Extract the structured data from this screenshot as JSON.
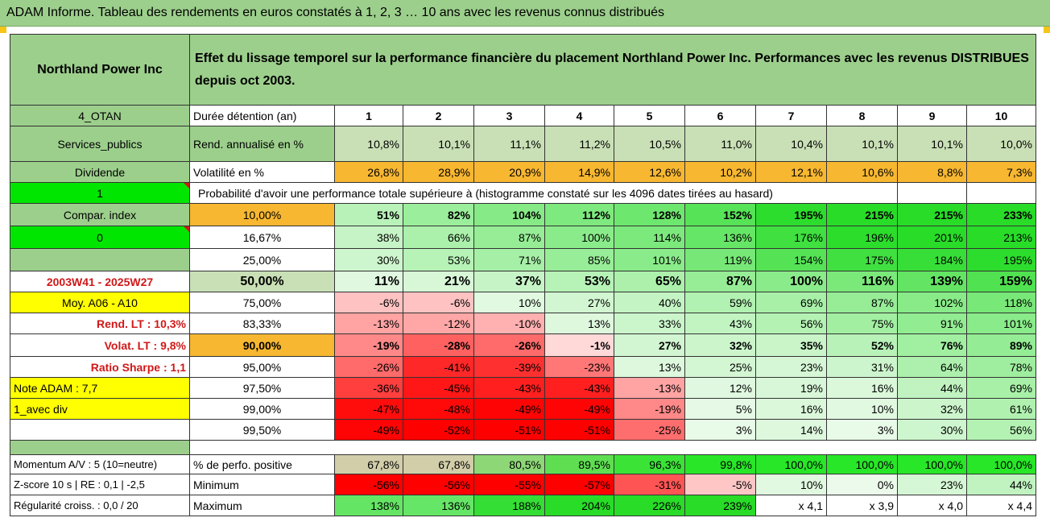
{
  "title": "ADAM Informe. Tableau des rendements en euros constatés à 1, 2, 3 … 10 ans avec les revenus connus distribués",
  "company": "Northland Power Inc",
  "description": "Effet du lissage temporel sur la performance financière du placement Northland Power Inc. Performances avec les revenus DISTRIBUES depuis oct 2003.",
  "side": {
    "code": "4_OTAN",
    "sector": "Services_publics",
    "type": "Dividende",
    "flag1": "1",
    "compar": "Compar. index",
    "flag0": "0",
    "period": "2003W41 - 2025W27",
    "moy": "Moy. A06 - A10",
    "rend_lt": "Rend. LT :   10,3%",
    "volat_lt": "Volat. LT :   9,8%",
    "sharpe": "Ratio Sharpe :   1,1",
    "note": "Note ADAM : 7,7",
    "avec_div": "1_avec div",
    "momentum": "Momentum A/V : 5 (10=neutre)",
    "zscore": "Z-score 10 s | RE : 0,1 | -2,5",
    "regularite": "Régularité croiss. : 0,0 / 20"
  },
  "labels": {
    "duree": "Durée détention (an)",
    "rend": "Rend. annualisé en %",
    "vol": "Volatilité en %",
    "proba": "Probabilité d'avoir une performance totale supérieure à (histogramme constaté sur les 4096 dates tirées au hasard)",
    "pct_pos": "% de perfo. positive",
    "minimum": "Minimum",
    "maximum": "Maximum"
  },
  "years": [
    "1",
    "2",
    "3",
    "4",
    "5",
    "6",
    "7",
    "8",
    "9",
    "10"
  ],
  "rend": [
    "10,8%",
    "10,1%",
    "11,1%",
    "11,2%",
    "10,5%",
    "11,0%",
    "10,4%",
    "10,1%",
    "10,1%",
    "10,0%"
  ],
  "vol": [
    "26,8%",
    "28,9%",
    "20,9%",
    "14,9%",
    "12,6%",
    "10,2%",
    "12,1%",
    "10,6%",
    "8,8%",
    "7,3%"
  ],
  "prob_rows": [
    {
      "p": "10,00%",
      "v": [
        "51%",
        "82%",
        "104%",
        "112%",
        "128%",
        "152%",
        "195%",
        "215%",
        "215%",
        "233%"
      ]
    },
    {
      "p": "16,67%",
      "v": [
        "38%",
        "66%",
        "87%",
        "100%",
        "114%",
        "136%",
        "176%",
        "196%",
        "201%",
        "213%"
      ]
    },
    {
      "p": "25,00%",
      "v": [
        "30%",
        "53%",
        "71%",
        "85%",
        "101%",
        "119%",
        "154%",
        "175%",
        "184%",
        "195%"
      ]
    },
    {
      "p": "50,00%",
      "v": [
        "11%",
        "21%",
        "37%",
        "53%",
        "65%",
        "87%",
        "100%",
        "116%",
        "139%",
        "159%"
      ]
    },
    {
      "p": "75,00%",
      "v": [
        "-6%",
        "-6%",
        "10%",
        "27%",
        "40%",
        "59%",
        "69%",
        "87%",
        "102%",
        "118%"
      ]
    },
    {
      "p": "83,33%",
      "v": [
        "-13%",
        "-12%",
        "-10%",
        "13%",
        "33%",
        "43%",
        "56%",
        "75%",
        "91%",
        "101%"
      ]
    },
    {
      "p": "90,00%",
      "v": [
        "-19%",
        "-28%",
        "-26%",
        "-1%",
        "27%",
        "32%",
        "35%",
        "52%",
        "76%",
        "89%"
      ]
    },
    {
      "p": "95,00%",
      "v": [
        "-26%",
        "-41%",
        "-39%",
        "-23%",
        "13%",
        "25%",
        "23%",
        "31%",
        "64%",
        "78%"
      ]
    },
    {
      "p": "97,50%",
      "v": [
        "-36%",
        "-45%",
        "-43%",
        "-43%",
        "-13%",
        "12%",
        "19%",
        "16%",
        "44%",
        "69%"
      ]
    },
    {
      "p": "99,00%",
      "v": [
        "-47%",
        "-48%",
        "-49%",
        "-49%",
        "-19%",
        "5%",
        "16%",
        "10%",
        "32%",
        "61%"
      ]
    },
    {
      "p": "99,50%",
      "v": [
        "-49%",
        "-52%",
        "-51%",
        "-51%",
        "-25%",
        "3%",
        "14%",
        "3%",
        "30%",
        "56%"
      ]
    }
  ],
  "pct_pos": [
    "67,8%",
    "67,8%",
    "80,5%",
    "89,5%",
    "96,3%",
    "99,8%",
    "100,0%",
    "100,0%",
    "100,0%",
    "100,0%"
  ],
  "minimum": [
    "-56%",
    "-56%",
    "-55%",
    "-57%",
    "-31%",
    "-5%",
    "10%",
    "0%",
    "23%",
    "44%"
  ],
  "maximum": [
    "138%",
    "136%",
    "188%",
    "204%",
    "226%",
    "239%",
    "x 4,1",
    "x 3,9",
    "x 4,0",
    "x 4,4"
  ],
  "colors": {
    "header_green": "#9ccf8c",
    "light_green": "#c9e0b6",
    "orange": "#f7b731",
    "yellow": "#ffff00",
    "lime": "#00e600",
    "red_text": "#d01818"
  }
}
